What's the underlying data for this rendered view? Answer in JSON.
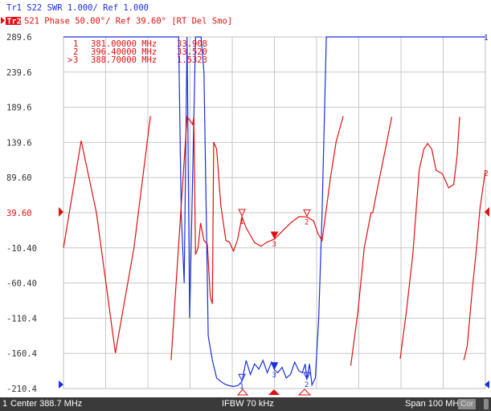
{
  "trace1_header": "Tr1  S22  SWR 1.000/ Ref 1.000",
  "trace2_badge": "Tr2",
  "trace2_header": "S21  Phase 50.00°/ Ref 39.60°  [RT Del Smo]",
  "markers": [
    {
      "id": "1",
      "freq": "381.00000 MHz",
      "value": "33.908",
      "active": false
    },
    {
      "id": "2",
      "freq": "396.40000 MHz",
      "value": "33.520",
      "active": false
    },
    {
      "id": "3",
      "freq": "388.70000 MHz",
      "value": "1.5323",
      "active": true
    }
  ],
  "status": {
    "channel": "1",
    "center": "Center 388.7 MHz",
    "ifbw": "IFBW 70 kHz",
    "span": "Span 100 MHz",
    "cor": "Cor"
  },
  "colors": {
    "trace1": "#1a2fe0",
    "trace2": "#e01010",
    "grid": "#c8c8c8",
    "status_bg": "#3a3a3a"
  },
  "chart_data": {
    "type": "line",
    "xlabel": "",
    "ylabel": "",
    "x_range_mhz": [
      338.7,
      438.7
    ],
    "ylim": [
      -210.4,
      289.6
    ],
    "y_ticks": [
      "289.6",
      "239.6",
      "189.6",
      "139.6",
      "89.60",
      "39.60",
      "-10.40",
      "-60.40",
      "-110.4",
      "-160.4",
      "-210.4"
    ],
    "reference_level": 39.6,
    "grid": true,
    "series": [
      {
        "name": "Tr1",
        "scale": "SWR 1.000/div, Ref 1.000",
        "x": [
          338.7,
          364.6,
          366.0,
          366.6,
          367.3,
          368.0,
          368.6,
          369.3,
          370.0,
          371.3,
          372.0,
          373.0,
          374.0,
          375.0,
          376.0,
          377.0,
          378.0,
          379.0,
          380.0,
          381.0,
          382.0,
          383.0,
          384.0,
          385.0,
          386.0,
          387.0,
          388.0,
          388.7,
          389.5,
          390.5,
          391.5,
          392.5,
          393.5,
          394.5,
          395.3,
          396.0,
          396.4,
          397.0,
          397.6,
          398.4,
          399.2,
          400.0,
          401.0,
          402.0,
          403.0,
          404.0,
          405.0,
          406.0,
          407.0,
          408.0,
          409.0,
          410.0,
          411.0,
          412.0,
          413.0,
          414.0,
          415.0,
          416.0,
          417.0,
          418.0,
          419.0,
          420.0,
          421.0,
          422.0,
          423.0,
          424.0,
          425.0,
          426.0,
          427.0,
          428.0,
          429.0,
          430.0,
          431.0,
          432.0,
          433.0,
          434.0,
          435.0,
          436.0,
          437.0,
          438.7
        ],
        "values": [
          25,
          25,
          12,
          6,
          4,
          12,
          3,
          7,
          25,
          25,
          10,
          2.5,
          1.8,
          1.3,
          1.2,
          1.12,
          1.08,
          1.06,
          1.08,
          1.2,
          1.8,
          1.4,
          1.7,
          1.55,
          1.8,
          1.45,
          1.75,
          1.53,
          1.45,
          1.6,
          1.3,
          1.4,
          1.75,
          1.5,
          1.45,
          1.7,
          1.25,
          1.7,
          1.1,
          1.3,
          3.0,
          6.0,
          25,
          25,
          25,
          25,
          25,
          25,
          25,
          25,
          25,
          25,
          25,
          25,
          25,
          25,
          25,
          25,
          25,
          25,
          25,
          25,
          25,
          25,
          25,
          24.6,
          24.2,
          23.9,
          24.4,
          23.7,
          24.3,
          23.8,
          24.2,
          24.5,
          24.1,
          24.7,
          24.9,
          24.8,
          25,
          25
        ]
      },
      {
        "name": "Tr2",
        "scale": "Phase 50.00°/div, Ref 39.60°",
        "x": [
          338.7,
          342.9,
          346.5,
          351.0,
          355.4,
          359.3,
          364.2,
          366.6,
          368.0,
          368.8,
          369.3,
          369.6,
          370.0,
          370.6,
          371.2,
          372.0,
          372.8,
          373.5,
          374.0,
          374.3,
          375.0,
          376.0,
          377.2,
          378.0,
          379.0,
          380.0,
          381.0,
          382.0,
          384.0,
          385.5,
          387.0,
          388.7,
          390.5,
          392.5,
          394.5,
          396.4,
          398.0,
          399.0,
          400.0,
          401.0,
          402.0,
          403.3,
          405.0,
          406.8,
          408.5,
          410.0,
          411.6,
          412.0,
          413.3,
          415.0,
          416.5,
          418.5,
          420.0,
          421.5,
          423.0,
          424.1,
          425.0,
          426.0,
          427.0,
          428.5,
          430.0,
          431.2,
          432.0,
          432.6,
          433.6,
          434.4,
          435.6,
          436.6,
          437.4,
          438.7
        ],
        "values": [
          -10.4,
          142,
          39.6,
          -160,
          -10.4,
          177,
          -170,
          50,
          176,
          170,
          165,
          176,
          -20,
          -10,
          25,
          0,
          -5,
          -80,
          -90,
          140,
          130,
          50,
          0,
          -2,
          -15,
          2,
          34,
          18,
          -3,
          -8,
          -2,
          2,
          13,
          25,
          34,
          33.5,
          28,
          10,
          0,
          45,
          90,
          140,
          177,
          -178,
          -100,
          -10,
          39.6,
          39.6,
          80,
          130,
          176,
          -168,
          -100,
          -20,
          100,
          130,
          138,
          130,
          100,
          95,
          75,
          80,
          120,
          176,
          -170,
          -150,
          -70,
          -10,
          45,
          100
        ]
      }
    ]
  }
}
